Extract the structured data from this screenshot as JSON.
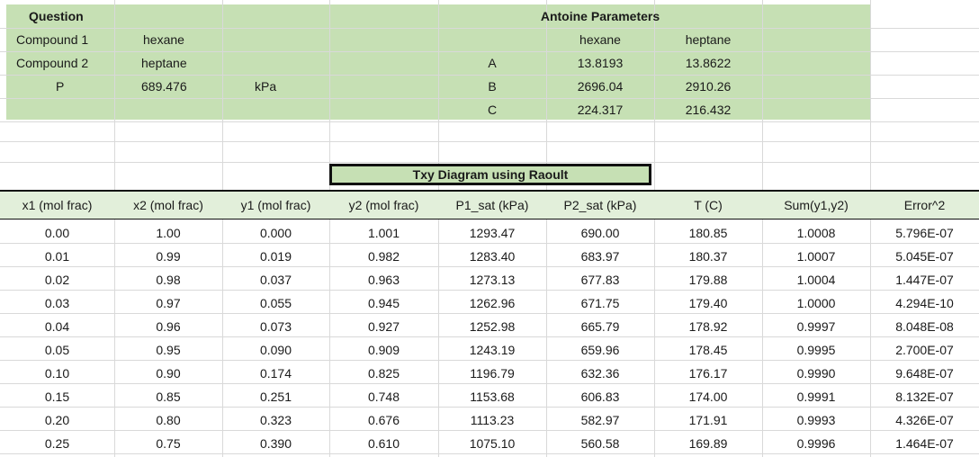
{
  "question": {
    "label": "Question",
    "compound1_label": "Compound 1",
    "compound1_value": "hexane",
    "compound2_label": "Compound 2",
    "compound2_value": "heptane",
    "p_label": "P",
    "p_value": "689.476",
    "p_unit": "kPa"
  },
  "antoine": {
    "title": "Antoine Parameters",
    "col1": "hexane",
    "col2": "heptane",
    "rows": [
      {
        "param": "A",
        "v1": "13.8193",
        "v2": "13.8622"
      },
      {
        "param": "B",
        "v1": "2696.04",
        "v2": "2910.26"
      },
      {
        "param": "C",
        "v1": "224.317",
        "v2": "216.432"
      }
    ]
  },
  "table_title": "Txy Diagram using Raoult",
  "headers": [
    "x1 (mol frac)",
    "x2 (mol frac)",
    "y1 (mol frac)",
    "y2 (mol frac)",
    "P1_sat (kPa)",
    "P2_sat (kPa)",
    "T (C)",
    "Sum(y1,y2)",
    "Error^2"
  ],
  "rows": [
    [
      "0.00",
      "1.00",
      "0.000",
      "1.001",
      "1293.47",
      "690.00",
      "180.85",
      "1.0008",
      "5.796E-07"
    ],
    [
      "0.01",
      "0.99",
      "0.019",
      "0.982",
      "1283.40",
      "683.97",
      "180.37",
      "1.0007",
      "5.045E-07"
    ],
    [
      "0.02",
      "0.98",
      "0.037",
      "0.963",
      "1273.13",
      "677.83",
      "179.88",
      "1.0004",
      "1.447E-07"
    ],
    [
      "0.03",
      "0.97",
      "0.055",
      "0.945",
      "1262.96",
      "671.75",
      "179.40",
      "1.0000",
      "4.294E-10"
    ],
    [
      "0.04",
      "0.96",
      "0.073",
      "0.927",
      "1252.98",
      "665.79",
      "178.92",
      "0.9997",
      "8.048E-08"
    ],
    [
      "0.05",
      "0.95",
      "0.090",
      "0.909",
      "1243.19",
      "659.96",
      "178.45",
      "0.9995",
      "2.700E-07"
    ],
    [
      "0.10",
      "0.90",
      "0.174",
      "0.825",
      "1196.79",
      "632.36",
      "176.17",
      "0.9990",
      "9.648E-07"
    ],
    [
      "0.15",
      "0.85",
      "0.251",
      "0.748",
      "1153.68",
      "606.83",
      "174.00",
      "0.9991",
      "8.132E-07"
    ],
    [
      "0.20",
      "0.80",
      "0.323",
      "0.676",
      "1113.23",
      "582.97",
      "171.91",
      "0.9993",
      "4.326E-07"
    ],
    [
      "0.25",
      "0.75",
      "0.390",
      "0.610",
      "1075.10",
      "560.58",
      "169.89",
      "0.9996",
      "1.464E-07"
    ]
  ],
  "colors": {
    "green_fill": "#c6e0b4",
    "header_fill": "#e2efda",
    "gridline": "#d9d9d9"
  }
}
